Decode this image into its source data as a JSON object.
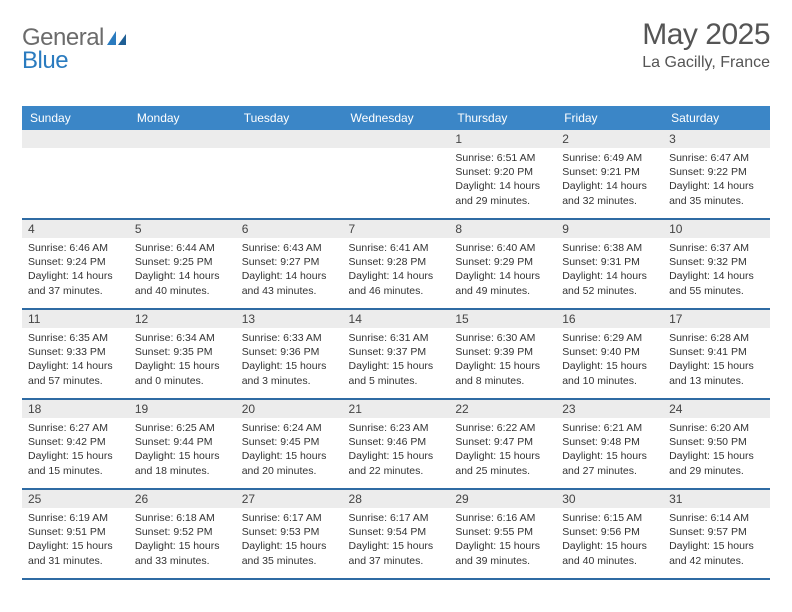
{
  "brand": {
    "text1": "General",
    "text2": "Blue"
  },
  "title": {
    "month": "May 2025",
    "location": "La Gacilly, France"
  },
  "colors": {
    "header_bg": "#3b86c7",
    "header_text": "#ffffff",
    "rule": "#2f6ba3",
    "band_bg": "#ececec",
    "body_text": "#333333",
    "logo_gray": "#6b6b6b",
    "logo_blue": "#2a7bbf"
  },
  "dayHeaders": [
    "Sunday",
    "Monday",
    "Tuesday",
    "Wednesday",
    "Thursday",
    "Friday",
    "Saturday"
  ],
  "weeks": [
    [
      null,
      null,
      null,
      null,
      {
        "n": "1",
        "sunrise": "Sunrise: 6:51 AM",
        "sunset": "Sunset: 9:20 PM",
        "d1": "Daylight: 14 hours",
        "d2": "and 29 minutes."
      },
      {
        "n": "2",
        "sunrise": "Sunrise: 6:49 AM",
        "sunset": "Sunset: 9:21 PM",
        "d1": "Daylight: 14 hours",
        "d2": "and 32 minutes."
      },
      {
        "n": "3",
        "sunrise": "Sunrise: 6:47 AM",
        "sunset": "Sunset: 9:22 PM",
        "d1": "Daylight: 14 hours",
        "d2": "and 35 minutes."
      }
    ],
    [
      {
        "n": "4",
        "sunrise": "Sunrise: 6:46 AM",
        "sunset": "Sunset: 9:24 PM",
        "d1": "Daylight: 14 hours",
        "d2": "and 37 minutes."
      },
      {
        "n": "5",
        "sunrise": "Sunrise: 6:44 AM",
        "sunset": "Sunset: 9:25 PM",
        "d1": "Daylight: 14 hours",
        "d2": "and 40 minutes."
      },
      {
        "n": "6",
        "sunrise": "Sunrise: 6:43 AM",
        "sunset": "Sunset: 9:27 PM",
        "d1": "Daylight: 14 hours",
        "d2": "and 43 minutes."
      },
      {
        "n": "7",
        "sunrise": "Sunrise: 6:41 AM",
        "sunset": "Sunset: 9:28 PM",
        "d1": "Daylight: 14 hours",
        "d2": "and 46 minutes."
      },
      {
        "n": "8",
        "sunrise": "Sunrise: 6:40 AM",
        "sunset": "Sunset: 9:29 PM",
        "d1": "Daylight: 14 hours",
        "d2": "and 49 minutes."
      },
      {
        "n": "9",
        "sunrise": "Sunrise: 6:38 AM",
        "sunset": "Sunset: 9:31 PM",
        "d1": "Daylight: 14 hours",
        "d2": "and 52 minutes."
      },
      {
        "n": "10",
        "sunrise": "Sunrise: 6:37 AM",
        "sunset": "Sunset: 9:32 PM",
        "d1": "Daylight: 14 hours",
        "d2": "and 55 minutes."
      }
    ],
    [
      {
        "n": "11",
        "sunrise": "Sunrise: 6:35 AM",
        "sunset": "Sunset: 9:33 PM",
        "d1": "Daylight: 14 hours",
        "d2": "and 57 minutes."
      },
      {
        "n": "12",
        "sunrise": "Sunrise: 6:34 AM",
        "sunset": "Sunset: 9:35 PM",
        "d1": "Daylight: 15 hours",
        "d2": "and 0 minutes."
      },
      {
        "n": "13",
        "sunrise": "Sunrise: 6:33 AM",
        "sunset": "Sunset: 9:36 PM",
        "d1": "Daylight: 15 hours",
        "d2": "and 3 minutes."
      },
      {
        "n": "14",
        "sunrise": "Sunrise: 6:31 AM",
        "sunset": "Sunset: 9:37 PM",
        "d1": "Daylight: 15 hours",
        "d2": "and 5 minutes."
      },
      {
        "n": "15",
        "sunrise": "Sunrise: 6:30 AM",
        "sunset": "Sunset: 9:39 PM",
        "d1": "Daylight: 15 hours",
        "d2": "and 8 minutes."
      },
      {
        "n": "16",
        "sunrise": "Sunrise: 6:29 AM",
        "sunset": "Sunset: 9:40 PM",
        "d1": "Daylight: 15 hours",
        "d2": "and 10 minutes."
      },
      {
        "n": "17",
        "sunrise": "Sunrise: 6:28 AM",
        "sunset": "Sunset: 9:41 PM",
        "d1": "Daylight: 15 hours",
        "d2": "and 13 minutes."
      }
    ],
    [
      {
        "n": "18",
        "sunrise": "Sunrise: 6:27 AM",
        "sunset": "Sunset: 9:42 PM",
        "d1": "Daylight: 15 hours",
        "d2": "and 15 minutes."
      },
      {
        "n": "19",
        "sunrise": "Sunrise: 6:25 AM",
        "sunset": "Sunset: 9:44 PM",
        "d1": "Daylight: 15 hours",
        "d2": "and 18 minutes."
      },
      {
        "n": "20",
        "sunrise": "Sunrise: 6:24 AM",
        "sunset": "Sunset: 9:45 PM",
        "d1": "Daylight: 15 hours",
        "d2": "and 20 minutes."
      },
      {
        "n": "21",
        "sunrise": "Sunrise: 6:23 AM",
        "sunset": "Sunset: 9:46 PM",
        "d1": "Daylight: 15 hours",
        "d2": "and 22 minutes."
      },
      {
        "n": "22",
        "sunrise": "Sunrise: 6:22 AM",
        "sunset": "Sunset: 9:47 PM",
        "d1": "Daylight: 15 hours",
        "d2": "and 25 minutes."
      },
      {
        "n": "23",
        "sunrise": "Sunrise: 6:21 AM",
        "sunset": "Sunset: 9:48 PM",
        "d1": "Daylight: 15 hours",
        "d2": "and 27 minutes."
      },
      {
        "n": "24",
        "sunrise": "Sunrise: 6:20 AM",
        "sunset": "Sunset: 9:50 PM",
        "d1": "Daylight: 15 hours",
        "d2": "and 29 minutes."
      }
    ],
    [
      {
        "n": "25",
        "sunrise": "Sunrise: 6:19 AM",
        "sunset": "Sunset: 9:51 PM",
        "d1": "Daylight: 15 hours",
        "d2": "and 31 minutes."
      },
      {
        "n": "26",
        "sunrise": "Sunrise: 6:18 AM",
        "sunset": "Sunset: 9:52 PM",
        "d1": "Daylight: 15 hours",
        "d2": "and 33 minutes."
      },
      {
        "n": "27",
        "sunrise": "Sunrise: 6:17 AM",
        "sunset": "Sunset: 9:53 PM",
        "d1": "Daylight: 15 hours",
        "d2": "and 35 minutes."
      },
      {
        "n": "28",
        "sunrise": "Sunrise: 6:17 AM",
        "sunset": "Sunset: 9:54 PM",
        "d1": "Daylight: 15 hours",
        "d2": "and 37 minutes."
      },
      {
        "n": "29",
        "sunrise": "Sunrise: 6:16 AM",
        "sunset": "Sunset: 9:55 PM",
        "d1": "Daylight: 15 hours",
        "d2": "and 39 minutes."
      },
      {
        "n": "30",
        "sunrise": "Sunrise: 6:15 AM",
        "sunset": "Sunset: 9:56 PM",
        "d1": "Daylight: 15 hours",
        "d2": "and 40 minutes."
      },
      {
        "n": "31",
        "sunrise": "Sunrise: 6:14 AM",
        "sunset": "Sunset: 9:57 PM",
        "d1": "Daylight: 15 hours",
        "d2": "and 42 minutes."
      }
    ]
  ]
}
